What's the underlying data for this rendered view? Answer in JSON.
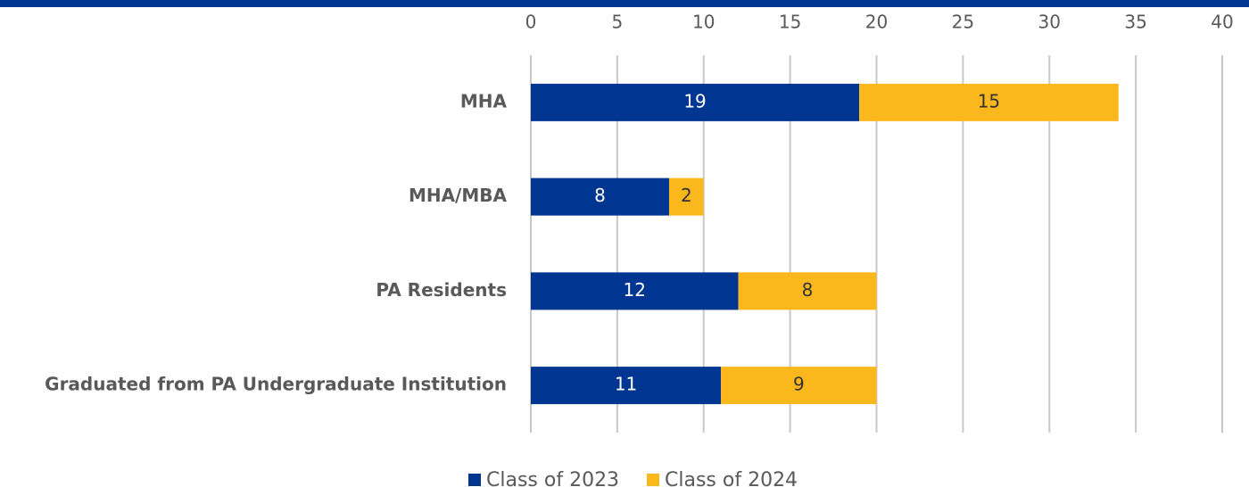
{
  "chart_data": {
    "type": "bar",
    "orientation": "horizontal",
    "stacked": true,
    "categories": [
      "MHA",
      "MHA/MBA",
      "PA Residents",
      "Graduated from PA Undergraduate Institution"
    ],
    "series": [
      {
        "name": "Class of 2023",
        "color": "#003591",
        "values": [
          19,
          8,
          12,
          11
        ]
      },
      {
        "name": "Class of 2024",
        "color": "#fbb81d",
        "values": [
          15,
          2,
          8,
          9
        ]
      }
    ],
    "xlim": [
      0,
      40
    ],
    "xticks": [
      0,
      5,
      10,
      15,
      20,
      25,
      30,
      35,
      40
    ],
    "grid": true,
    "legend": "bottom"
  }
}
